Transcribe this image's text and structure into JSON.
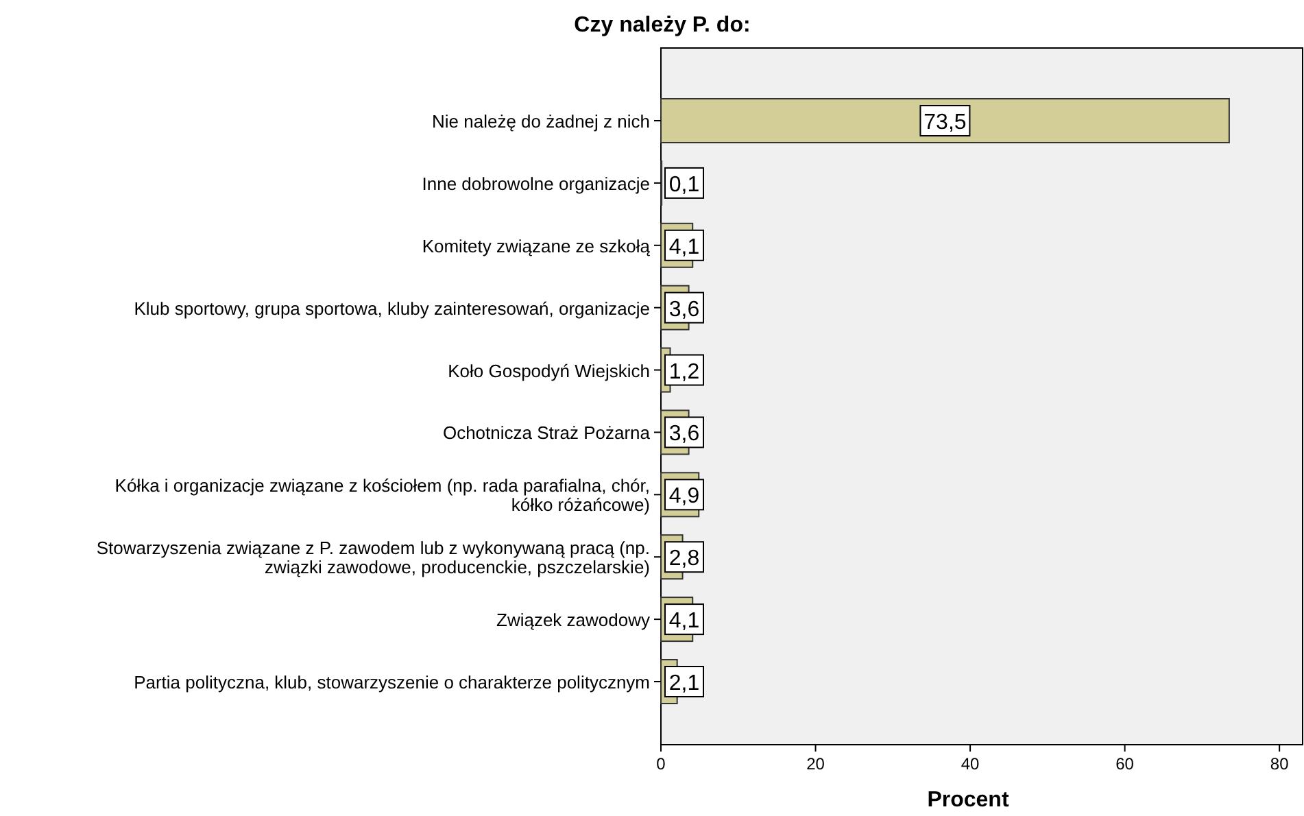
{
  "chart_data": {
    "type": "bar",
    "orientation": "horizontal",
    "title": "Czy należy P. do:",
    "xlabel": "Procent",
    "categories": [
      "Nie należę do żadnej z nich",
      "Inne dobrowolne organizacje",
      "Komitety związane ze szkołą",
      "Klub sportowy, grupa sportowa, kluby zainteresowań, organizacje",
      "Koło Gospodyń Wiejskich",
      "Ochotnicza Straż Pożarna",
      "Kółka i organizacje związane z kościołem (np. rada parafialna, chór,\nkółko różańcowe)",
      "Stowarzyszenia związane z P. zawodem lub z wykonywaną pracą (np.\nzwiązki zawodowe, producenckie, pszczelarskie)",
      "Związek zawodowy",
      "Partia polityczna, klub, stowarzyszenie o charakterze politycznym"
    ],
    "values": [
      73.5,
      0.1,
      4.1,
      3.6,
      1.2,
      3.6,
      4.9,
      2.8,
      4.1,
      2.1
    ],
    "value_labels": [
      "73,5",
      "0,1",
      "4,1",
      "3,6",
      "1,2",
      "3,6",
      "4,9",
      "2,8",
      "4,1",
      "2,1"
    ],
    "color": "#d3ce98",
    "xlim": [
      0,
      83
    ],
    "xticks": [
      0,
      20,
      40,
      60,
      80
    ],
    "grid": false,
    "legend": false
  }
}
